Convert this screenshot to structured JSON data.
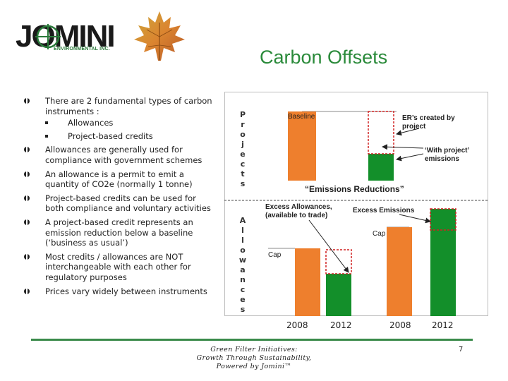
{
  "logo": {
    "wordmark": "JOMINI",
    "subtitle": "ENVIRONMENTAL INC."
  },
  "title": "Carbon Offsets",
  "bullets": [
    {
      "text": "There are 2 fundamental types of carbon instruments :",
      "sub": [
        "Allowances",
        "Project-based credits"
      ]
    },
    {
      "text": "Allowances are generally used for compliance with government schemes"
    },
    {
      "text": "An allowance is a permit to emit a quantity of CO2e (normally 1 tonne)"
    },
    {
      "text": "Project-based credits can be used for both compliance and voluntary activities"
    },
    {
      "text": "A project-based credit represents an emission reduction below a baseline (‘business as usual’)"
    },
    {
      "text": "Most credits / allowances are NOT interchangeable with each other for regulatory purposes"
    },
    {
      "text": "Prices vary widely between instruments"
    }
  ],
  "diagram": {
    "vlabel_projects": [
      "P",
      "r",
      "o",
      "j",
      "e",
      "c",
      "t",
      "s"
    ],
    "vlabel_allowances": [
      "A",
      "l",
      "l",
      "o",
      "w",
      "a",
      "n",
      "c",
      "e",
      "s"
    ],
    "baseline": "Baseline",
    "ers_line1": "ER’s created by",
    "ers_line2": "project",
    "wp_line1": "‘With project’",
    "wp_line2": "emissions",
    "emissions_reductions": "“Emissions Reductions”",
    "excess_allow_line1": "Excess Allowances,",
    "excess_allow_line2": "(available to trade)",
    "excess_emissions": "Excess Emissions",
    "cap_left": "Cap",
    "cap_right": "Cap",
    "colors": {
      "orange": "#ee7f2d",
      "green": "#138f2a",
      "red": "#d02020"
    }
  },
  "years": [
    "2008",
    "2012",
    "2008",
    "2012"
  ],
  "footer": {
    "line1": "Green Filter Initiatives:",
    "line2": "Growth Through Sustainability,",
    "line3": "Powered by Jomini™",
    "page": "7"
  }
}
